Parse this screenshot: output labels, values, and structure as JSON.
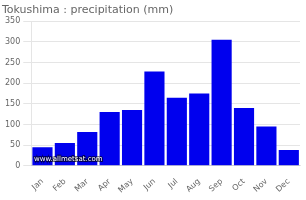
{
  "chart_data": {
    "type": "bar",
    "title": "Tokushima : precipitation (mm)",
    "categories": [
      "Jan",
      "Feb",
      "Mar",
      "Apr",
      "May",
      "Jun",
      "Jul",
      "Aug",
      "Sep",
      "Oct",
      "Nov",
      "Dec"
    ],
    "values": [
      45,
      55,
      82,
      130,
      135,
      228,
      165,
      175,
      305,
      140,
      95,
      38
    ],
    "color": "#0000EE",
    "ylim": [
      0,
      350
    ],
    "yticks": [
      0,
      50,
      100,
      150,
      200,
      250,
      300,
      350
    ],
    "grid": true,
    "annotation": "www.allmetsat.com"
  }
}
